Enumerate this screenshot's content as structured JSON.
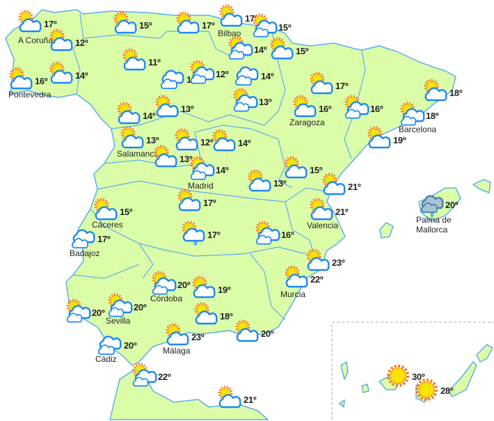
{
  "colors": {
    "land": "#dcfda8",
    "border": "#5aadf0",
    "cloud_outline": "#1e88f0",
    "sun": "#f7e400",
    "sun_ray": "#f57a1c",
    "storm_cloud": "#a9c3d3"
  },
  "stations": [
    {
      "icon": "partly-cloudy",
      "temp": "17º",
      "city": "A Coruña"
    },
    {
      "icon": "partly-cloudy",
      "temp": "12º",
      "city": ""
    },
    {
      "icon": "partly-cloudy",
      "temp": "15º",
      "city": ""
    },
    {
      "icon": "partly-cloudy",
      "temp": "17º",
      "city": ""
    },
    {
      "icon": "partly-cloudy",
      "temp": "17º",
      "city": "Bilbao"
    },
    {
      "icon": "sun-two-clouds",
      "temp": "15º",
      "city": ""
    },
    {
      "icon": "sun-two-clouds",
      "temp": "14º",
      "city": ""
    },
    {
      "icon": "partly-cloudy",
      "temp": "15º",
      "city": ""
    },
    {
      "icon": "partly-cloudy",
      "temp": "16º",
      "city": "Pontevedra"
    },
    {
      "icon": "partly-cloudy",
      "temp": "14º",
      "city": ""
    },
    {
      "icon": "partly-cloudy",
      "temp": "11º",
      "city": ""
    },
    {
      "icon": "cloudy",
      "temp": "12º",
      "city": ""
    },
    {
      "icon": "sun-two-clouds",
      "temp": "12º",
      "city": ""
    },
    {
      "icon": "cloudy",
      "temp": "14º",
      "city": ""
    },
    {
      "icon": "sun-two-clouds",
      "temp": "13º",
      "city": ""
    },
    {
      "icon": "partly-cloudy",
      "temp": "17º",
      "city": ""
    },
    {
      "icon": "partly-cloudy",
      "temp": "16º",
      "city": "Zaragoza"
    },
    {
      "icon": "sun-two-clouds",
      "temp": "16º",
      "city": ""
    },
    {
      "icon": "partly-cloudy",
      "temp": "18º",
      "city": ""
    },
    {
      "icon": "sun-two-clouds",
      "temp": "18º",
      "city": "Barcelona"
    },
    {
      "icon": "partly-cloudy",
      "temp": "19º",
      "city": ""
    },
    {
      "icon": "partly-cloudy",
      "temp": "14º",
      "city": ""
    },
    {
      "icon": "partly-cloudy",
      "temp": "13º",
      "city": ""
    },
    {
      "icon": "partly-cloudy",
      "temp": "13º",
      "city": "Salamanca"
    },
    {
      "icon": "partly-cloudy",
      "temp": "12º",
      "city": ""
    },
    {
      "icon": "partly-cloudy",
      "temp": "13º",
      "city": ""
    },
    {
      "icon": "partly-cloudy",
      "temp": "14º",
      "city": ""
    },
    {
      "icon": "sun-two-clouds",
      "temp": "14º",
      "city": "Madrid"
    },
    {
      "icon": "partly-cloudy",
      "temp": "13º",
      "city": ""
    },
    {
      "icon": "partly-cloudy",
      "temp": "15º",
      "city": ""
    },
    {
      "icon": "partly-cloudy",
      "temp": "21º",
      "city": ""
    },
    {
      "icon": "overcast-rain",
      "temp": "20º",
      "city": "Palma de Mallorca"
    },
    {
      "icon": "partly-cloudy",
      "temp": "15º",
      "city": "Cáceres"
    },
    {
      "icon": "partly-cloudy",
      "temp": "17º",
      "city": ""
    },
    {
      "icon": "sun-cloud-rain",
      "temp": "17º",
      "city": ""
    },
    {
      "icon": "sun-two-clouds",
      "temp": "16º",
      "city": ""
    },
    {
      "icon": "partly-cloudy",
      "temp": "21º",
      "city": "Valencia"
    },
    {
      "icon": "cloudy",
      "temp": "17º",
      "city": "Badajoz"
    },
    {
      "icon": "partly-cloudy",
      "temp": "23º",
      "city": ""
    },
    {
      "icon": "partly-cloudy",
      "temp": "22º",
      "city": "Murcia"
    },
    {
      "icon": "sun-two-clouds",
      "temp": "20º",
      "city": "Córdoba"
    },
    {
      "icon": "partly-cloudy",
      "temp": "19º",
      "city": ""
    },
    {
      "icon": "sun-two-clouds",
      "temp": "20º",
      "city": ""
    },
    {
      "icon": "sun-two-clouds",
      "temp": "20º",
      "city": "Sevilla"
    },
    {
      "icon": "partly-cloudy",
      "temp": "18º",
      "city": ""
    },
    {
      "icon": "partly-cloudy",
      "temp": "23º",
      "city": "Málaga"
    },
    {
      "icon": "partly-cloudy",
      "temp": "20º",
      "city": ""
    },
    {
      "icon": "cloudy",
      "temp": "20º",
      "city": "Cádiz"
    },
    {
      "icon": "sun-two-clouds",
      "temp": "22º",
      "city": ""
    },
    {
      "icon": "partly-cloudy",
      "temp": "21º",
      "city": ""
    },
    {
      "icon": "sunny",
      "temp": "30º",
      "city": ""
    },
    {
      "icon": "sunny",
      "temp": "28º",
      "city": ""
    }
  ]
}
